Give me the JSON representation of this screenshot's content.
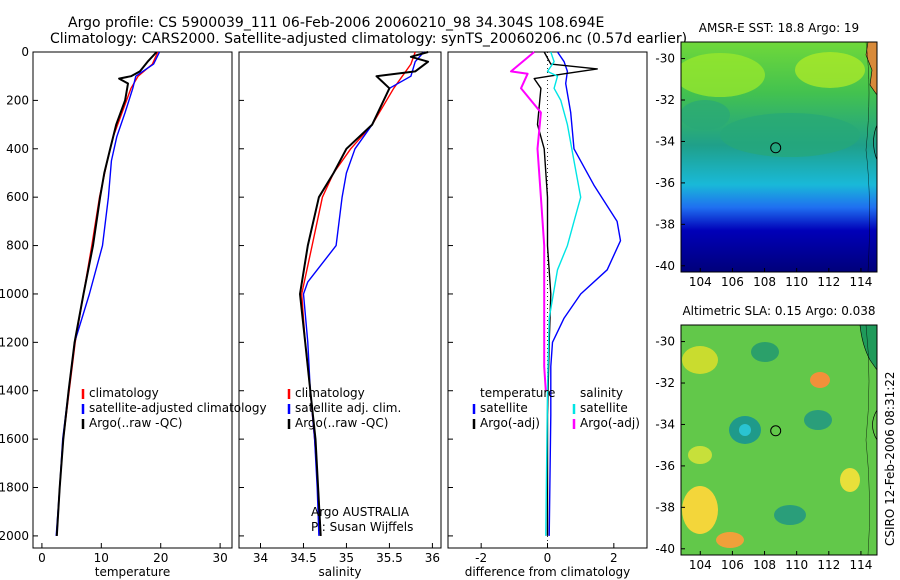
{
  "header": {
    "line1": "Argo profile: CS 5900039_111 06-Feb-2006 20060210_98 34.304S 108.694E",
    "line2": "Climatology: CARS2000. Satellite-adjusted climatology: synTS_20060206.nc (0.57d earlier)"
  },
  "footer_stamp": "CSIRO 12-Feb-2006 08:31:22",
  "colors": {
    "climatology": "#ff0000",
    "satellite": "#0000ff",
    "argo": "#000000",
    "satellite_salinity": "#00e5e5",
    "argo_salinity": "#ff00ff"
  },
  "chart_data": [
    {
      "type": "line",
      "xlabel": "temperature",
      "ylabel": "",
      "xlim": [
        -1.5,
        32
      ],
      "ylim": [
        2050,
        0
      ],
      "x_ticks": [
        0,
        10,
        20,
        30
      ],
      "y_ticks": [
        0,
        200,
        400,
        600,
        800,
        1000,
        1200,
        1400,
        1600,
        1800,
        2000
      ],
      "legend": [
        "climatology",
        "satellite-adjusted climatology",
        "Argo(..raw -QC)"
      ],
      "legend_location": "lower-center",
      "series": [
        {
          "name": "climatology",
          "color": "#ff0000",
          "points": [
            [
              19.5,
              0
            ],
            [
              18.6,
              50
            ],
            [
              16.2,
              100
            ],
            [
              15.0,
              150
            ],
            [
              13.5,
              250
            ],
            [
              12.0,
              350
            ],
            [
              11.0,
              450
            ],
            [
              9.7,
              600
            ],
            [
              8.4,
              800
            ],
            [
              7.0,
              1000
            ],
            [
              5.6,
              1200
            ],
            [
              4.6,
              1400
            ],
            [
              3.6,
              1600
            ],
            [
              3.0,
              1800
            ],
            [
              2.5,
              2000
            ]
          ]
        },
        {
          "name": "satellite-adjusted climatology",
          "color": "#0000ff",
          "points": [
            [
              19.8,
              0
            ],
            [
              18.8,
              50
            ],
            [
              15.8,
              100
            ],
            [
              15.3,
              150
            ],
            [
              14.0,
              250
            ],
            [
              12.6,
              350
            ],
            [
              11.7,
              450
            ],
            [
              11.2,
              600
            ],
            [
              10.2,
              800
            ],
            [
              8.0,
              1000
            ],
            [
              5.5,
              1200
            ],
            [
              4.5,
              1400
            ],
            [
              3.5,
              1600
            ],
            [
              3.0,
              1800
            ],
            [
              2.4,
              2000
            ]
          ]
        },
        {
          "name": "Argo(..raw -QC)",
          "color": "#000000",
          "points": [
            [
              19.3,
              0
            ],
            [
              17.8,
              40
            ],
            [
              16.5,
              80
            ],
            [
              15.0,
              100
            ],
            [
              13.0,
              110
            ],
            [
              14.5,
              130
            ],
            [
              14.0,
              200
            ],
            [
              12.5,
              300
            ],
            [
              11.5,
              400
            ],
            [
              10.5,
              500
            ],
            [
              9.8,
              600
            ],
            [
              8.6,
              800
            ],
            [
              7.0,
              1000
            ],
            [
              5.5,
              1200
            ],
            [
              4.5,
              1400
            ],
            [
              3.6,
              1600
            ],
            [
              3.0,
              1800
            ],
            [
              2.5,
              2000
            ]
          ]
        }
      ]
    },
    {
      "type": "line",
      "xlabel": "salinity",
      "ylabel": "",
      "xlim": [
        33.75,
        36.1
      ],
      "ylim": [
        2050,
        0
      ],
      "x_ticks": [
        34,
        34.5,
        35,
        35.5,
        36
      ],
      "y_ticks": [
        0,
        200,
        400,
        600,
        800,
        1000,
        1200,
        1400,
        1600,
        1800,
        2000
      ],
      "legend": [
        "climatology",
        "satellite adj. clim.",
        "Argo(..raw -QC)"
      ],
      "legend_location": "lower-center",
      "annotation": [
        "Argo AUSTRALIA",
        "PI: Susan Wijffels"
      ],
      "series": [
        {
          "name": "climatology",
          "color": "#ff0000",
          "points": [
            [
              35.8,
              0
            ],
            [
              35.75,
              50
            ],
            [
              35.55,
              150
            ],
            [
              35.3,
              300
            ],
            [
              35.05,
              400
            ],
            [
              34.85,
              500
            ],
            [
              34.72,
              600
            ],
            [
              34.6,
              800
            ],
            [
              34.48,
              1000
            ],
            [
              34.52,
              1200
            ],
            [
              34.58,
              1400
            ],
            [
              34.63,
              1600
            ],
            [
              34.67,
              1800
            ],
            [
              34.7,
              2000
            ]
          ]
        },
        {
          "name": "satellite adj. clim.",
          "color": "#0000ff",
          "points": [
            [
              35.9,
              0
            ],
            [
              35.8,
              40
            ],
            [
              35.75,
              100
            ],
            [
              35.5,
              150
            ],
            [
              35.3,
              300
            ],
            [
              35.1,
              400
            ],
            [
              35.0,
              500
            ],
            [
              34.95,
              600
            ],
            [
              34.88,
              800
            ],
            [
              34.55,
              950
            ],
            [
              34.5,
              1000
            ],
            [
              34.55,
              1200
            ],
            [
              34.58,
              1400
            ],
            [
              34.63,
              1600
            ],
            [
              34.66,
              1800
            ],
            [
              34.68,
              2000
            ]
          ]
        },
        {
          "name": "Argo(..raw -QC)",
          "color": "#000000",
          "points": [
            [
              35.95,
              0
            ],
            [
              35.75,
              20
            ],
            [
              35.95,
              40
            ],
            [
              35.8,
              80
            ],
            [
              35.35,
              100
            ],
            [
              35.5,
              150
            ],
            [
              35.3,
              300
            ],
            [
              35.0,
              400
            ],
            [
              34.85,
              500
            ],
            [
              34.68,
              600
            ],
            [
              34.55,
              800
            ],
            [
              34.46,
              1000
            ],
            [
              34.52,
              1200
            ],
            [
              34.58,
              1400
            ],
            [
              34.64,
              1600
            ],
            [
              34.67,
              1800
            ],
            [
              34.7,
              2000
            ]
          ]
        }
      ]
    },
    {
      "type": "line",
      "xlabel": "difference from climatology",
      "ylabel": "",
      "xlim": [
        -3,
        3
      ],
      "ylim": [
        2050,
        0
      ],
      "x_ticks": [
        -2,
        0,
        2
      ],
      "y_ticks": [
        0,
        200,
        400,
        600,
        800,
        1000,
        1200,
        1400,
        1600,
        1800,
        2000
      ],
      "legend_groups": [
        {
          "title": "temperature",
          "items": [
            "satellite",
            "Argo(-adj)"
          ]
        },
        {
          "title": "salinity",
          "items": [
            "satellite",
            "Argo(-adj)"
          ]
        }
      ],
      "legend_location": "lower-center",
      "series": [
        {
          "name": "temperature satellite",
          "color": "#0000ff",
          "points": [
            [
              0.3,
              0
            ],
            [
              0.5,
              40
            ],
            [
              0.6,
              80
            ],
            [
              0.55,
              130
            ],
            [
              0.7,
              250
            ],
            [
              0.8,
              400
            ],
            [
              1.4,
              550
            ],
            [
              2.1,
              700
            ],
            [
              2.2,
              780
            ],
            [
              1.8,
              900
            ],
            [
              1.0,
              1000
            ],
            [
              0.5,
              1100
            ],
            [
              0.15,
              1200
            ],
            [
              0.1,
              1300
            ],
            [
              0.1,
              1500
            ],
            [
              0.05,
              2000
            ]
          ]
        },
        {
          "name": "temperature Argo(-adj)",
          "color": "#000000",
          "points": [
            [
              -0.1,
              0
            ],
            [
              0.1,
              50
            ],
            [
              1.5,
              70
            ],
            [
              0.5,
              90
            ],
            [
              -0.4,
              110
            ],
            [
              -0.2,
              150
            ],
            [
              -0.3,
              300
            ],
            [
              -0.1,
              400
            ],
            [
              0.0,
              600
            ],
            [
              0.0,
              800
            ],
            [
              0.1,
              1000
            ],
            [
              0.05,
              1200
            ],
            [
              0.0,
              1500
            ],
            [
              0.0,
              2000
            ]
          ]
        },
        {
          "name": "salinity satellite",
          "color": "#00e5e5",
          "points": [
            [
              0.1,
              0
            ],
            [
              0.2,
              40
            ],
            [
              0.0,
              80
            ],
            [
              0.3,
              100
            ],
            [
              0.2,
              150
            ],
            [
              0.4,
              200
            ],
            [
              0.6,
              300
            ],
            [
              0.8,
              450
            ],
            [
              1.0,
              600
            ],
            [
              0.8,
              700
            ],
            [
              0.6,
              800
            ],
            [
              0.3,
              900
            ],
            [
              0.05,
              1100
            ],
            [
              0.0,
              1400
            ],
            [
              -0.05,
              2000
            ]
          ]
        },
        {
          "name": "salinity Argo(-adj)",
          "color": "#ff00ff",
          "points": [
            [
              -0.4,
              0
            ],
            [
              -1.1,
              80
            ],
            [
              -0.6,
              90
            ],
            [
              -0.8,
              150
            ],
            [
              -0.2,
              250
            ],
            [
              -0.3,
              400
            ],
            [
              -0.2,
              600
            ],
            [
              -0.1,
              800
            ],
            [
              -0.1,
              1000
            ],
            [
              -0.1,
              1300
            ],
            [
              -0.05,
              1400
            ]
          ]
        }
      ]
    },
    {
      "type": "heatmap",
      "title": "AMSR-E SST: 18.8 Argo: 19",
      "xlim": [
        102.8,
        115
      ],
      "ylim": [
        -40.3,
        -29.2
      ],
      "x_ticks": [
        104,
        106,
        108,
        110,
        112,
        114
      ],
      "y_ticks": [
        -30,
        -32,
        -34,
        -36,
        -38,
        -40
      ],
      "marker": [
        108.694,
        -34.304
      ]
    },
    {
      "type": "heatmap",
      "title": "Altimetric SLA: 0.15 Argo: 0.038",
      "xlim": [
        102.8,
        115
      ],
      "ylim": [
        -40.3,
        -29.2
      ],
      "x_ticks": [
        104,
        106,
        108,
        110,
        112,
        114
      ],
      "y_ticks": [
        -30,
        -32,
        -34,
        -36,
        -38,
        -40
      ],
      "marker": [
        108.694,
        -34.304
      ]
    }
  ]
}
